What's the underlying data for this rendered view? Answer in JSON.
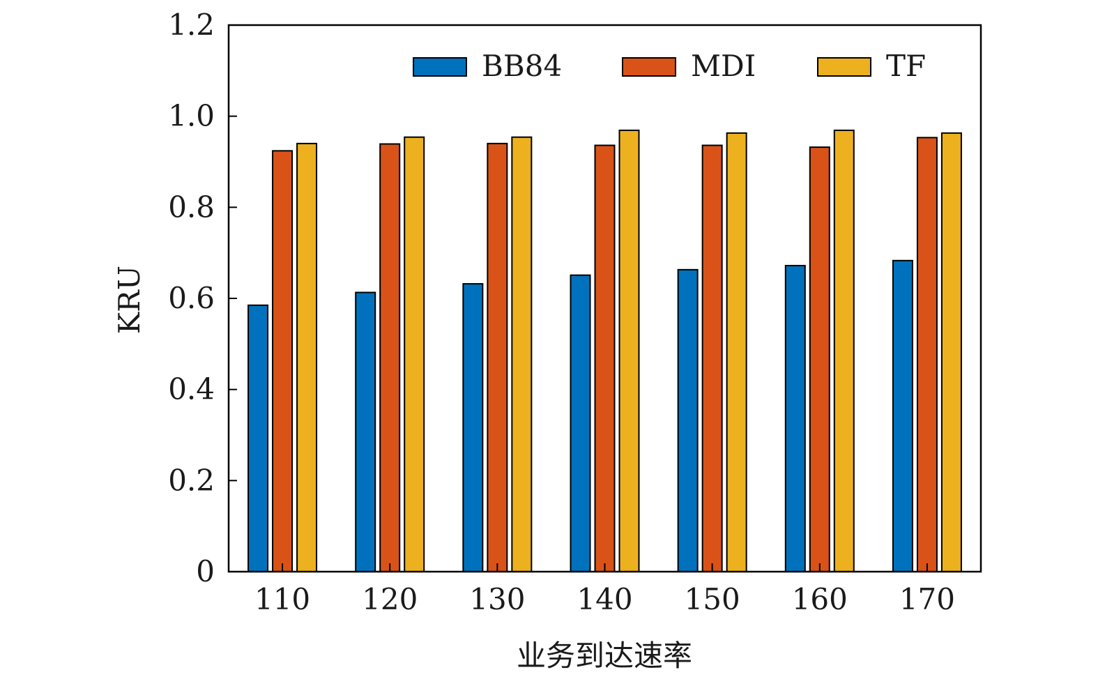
{
  "chart_data": {
    "type": "bar",
    "title": "",
    "xlabel": "业务到达速率",
    "ylabel": "KRU",
    "ylim": [
      0,
      1.2
    ],
    "yticks": [
      0,
      0.2,
      0.4,
      0.6,
      0.8,
      1.0,
      1.2
    ],
    "ytick_labels": [
      "0",
      "0.2",
      "0.4",
      "0.6",
      "0.8",
      "1.0",
      "1.2"
    ],
    "categories": [
      "110",
      "120",
      "130",
      "140",
      "150",
      "160",
      "170"
    ],
    "series": [
      {
        "name": "BB84",
        "color": "#0072BD",
        "values": [
          0.585,
          0.613,
          0.632,
          0.651,
          0.663,
          0.672,
          0.683
        ]
      },
      {
        "name": "MDI",
        "color": "#D95319",
        "values": [
          0.924,
          0.939,
          0.94,
          0.936,
          0.936,
          0.932,
          0.953
        ]
      },
      {
        "name": "TF",
        "color": "#EDB120",
        "values": [
          0.94,
          0.954,
          0.954,
          0.969,
          0.963,
          0.969,
          0.963
        ]
      }
    ],
    "legend": {
      "position": "top-right",
      "orientation": "horizontal"
    },
    "grid": false
  }
}
